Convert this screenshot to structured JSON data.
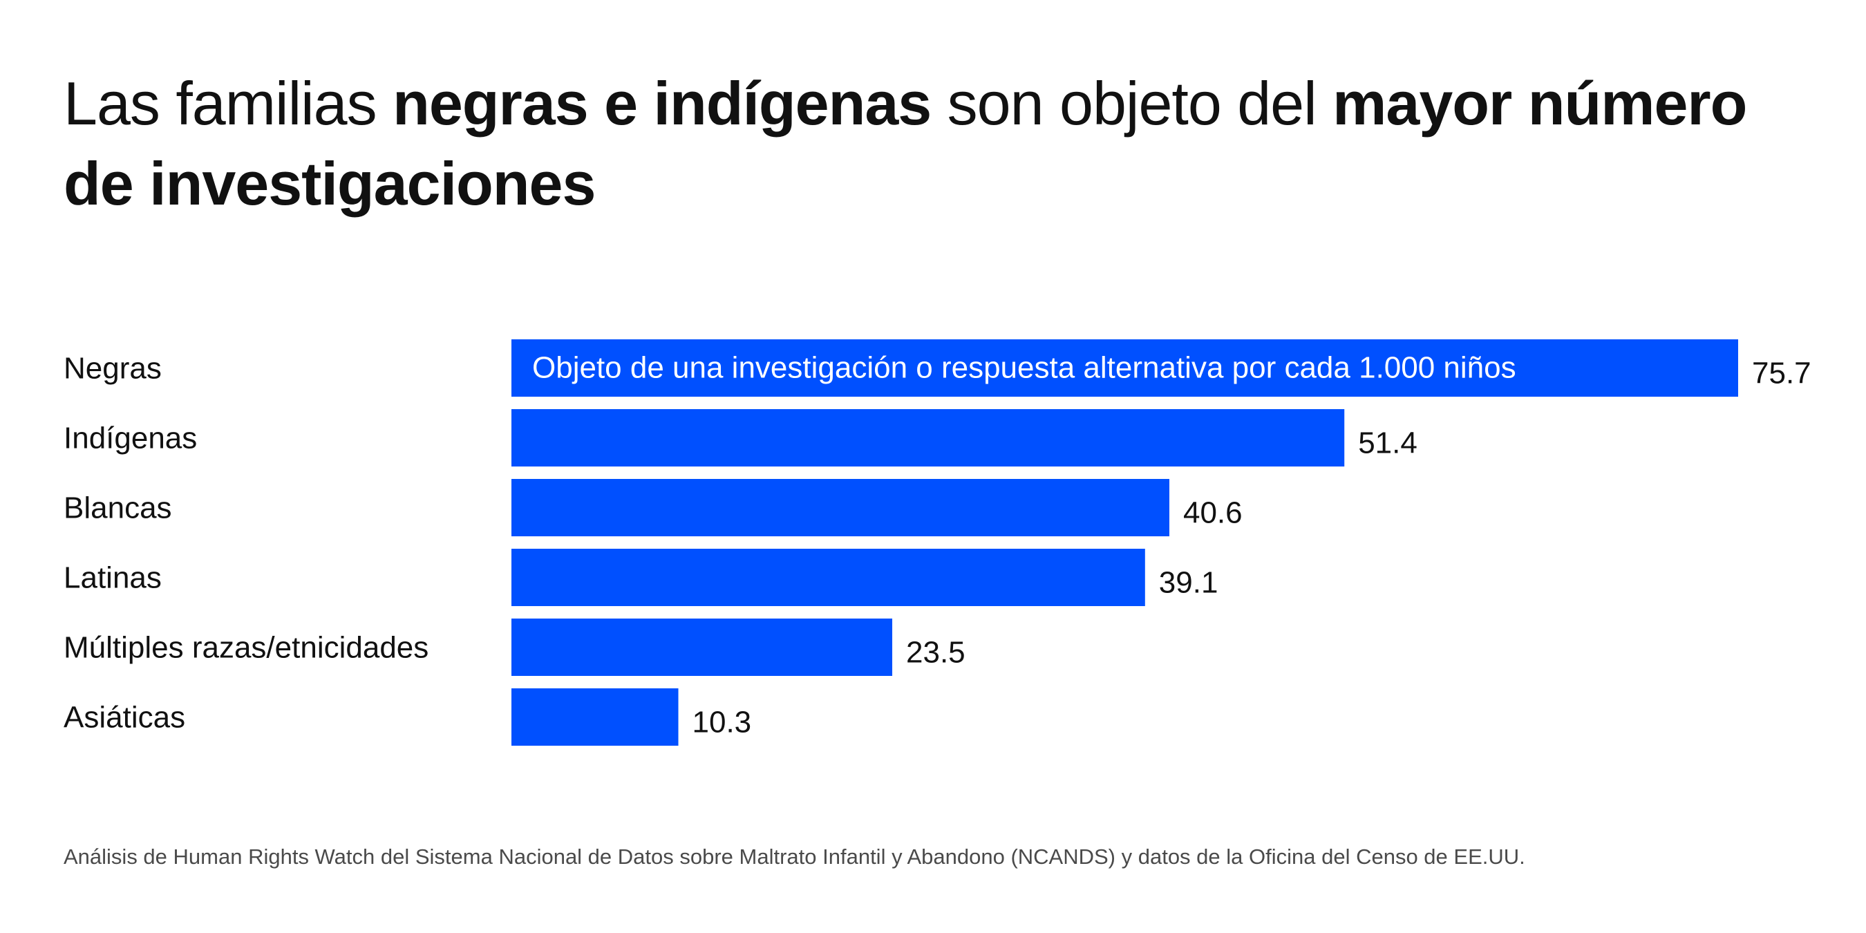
{
  "chart_data": {
    "type": "bar",
    "orientation": "horizontal",
    "title_parts": [
      {
        "text": "Las familias ",
        "bold": false
      },
      {
        "text": "negras e indígenas",
        "bold": true
      },
      {
        "text": " son objeto del ",
        "bold": false
      },
      {
        "text": "mayor número de investigaciones",
        "bold": true
      }
    ],
    "categories": [
      "Negras",
      "Indígenas",
      "Blancas",
      "Latinas",
      "Múltiples razas/etnicidades",
      "Asiáticas"
    ],
    "values": [
      75.7,
      51.4,
      40.6,
      39.1,
      23.5,
      10.3
    ],
    "value_labels": [
      "75.7",
      "51.4",
      "40.6",
      "39.1",
      "23.5",
      "10.3"
    ],
    "annotation": "Objeto de una investigación o respuesta alternativa por cada 1.000 niños",
    "xlim": [
      0,
      75.7
    ],
    "grid": false,
    "legend": "none",
    "bar_color": "#0050ff",
    "source": "Análisis de Human Rights Watch del Sistema Nacional de Datos sobre Maltrato Infantil y Abandono (NCANDS) y datos de la Oficina del Censo de EE.UU."
  }
}
